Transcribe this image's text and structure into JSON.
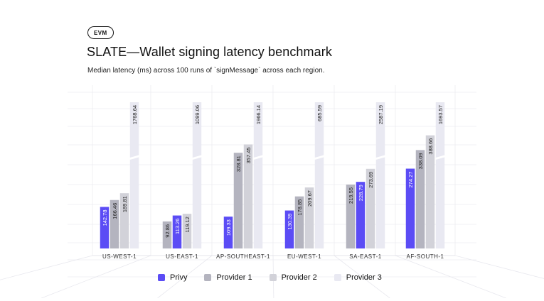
{
  "header": {
    "badge": "EVM",
    "title": "SLATE—Wallet signing latency benchmark",
    "subtitle": "Median latency (ms) across 100 runs of `signMessage` across each region."
  },
  "colors": {
    "Privy": "#5B4CF5",
    "Provider 1": "#B4B4BF",
    "Provider 2": "#D2D2D9",
    "Provider 3": "#E9E9F2"
  },
  "chart_data": {
    "type": "bar",
    "categories": [
      "US-WEST-1",
      "US-EAST-1",
      "AP-SOUTHEAST-1",
      "EU-WEST-1",
      "SA-EAST-1",
      "AF-SOUTH-1"
    ],
    "series": [
      {
        "name": "Privy",
        "values": [
          142.78,
          113.26,
          109.33,
          130.39,
          228.79,
          274.27
        ]
      },
      {
        "name": "Provider 1",
        "values": [
          166.46,
          92.86,
          328.81,
          178.85,
          219.55,
          338.09
        ]
      },
      {
        "name": "Provider 2",
        "values": [
          189.81,
          119.12,
          357.45,
          209.67,
          273.69,
          388.66
        ]
      },
      {
        "name": "Provider 3",
        "values": [
          1768.64,
          1099.06,
          1966.14,
          685.59,
          2587.19,
          1693.57
        ]
      }
    ],
    "bar_order": [
      [
        "Privy",
        "Provider 1",
        "Provider 2",
        "Provider 3"
      ],
      [
        "Provider 1",
        "Privy",
        "Provider 2",
        "Provider 3"
      ],
      [
        "Privy",
        "Provider 1",
        "Provider 2",
        "Provider 3"
      ],
      [
        "Privy",
        "Provider 1",
        "Provider 2",
        "Provider 3"
      ],
      [
        "Provider 1",
        "Privy",
        "Provider 2",
        "Provider 3"
      ],
      [
        "Privy",
        "Provider 1",
        "Provider 2",
        "Provider 3"
      ]
    ],
    "truncated_series": [
      "Provider 3"
    ],
    "legend_position": "bottom",
    "grid": true
  },
  "legend": [
    {
      "label": "Privy",
      "color": "#5B4CF5"
    },
    {
      "label": "Provider 1",
      "color": "#B4B4BF"
    },
    {
      "label": "Provider 2",
      "color": "#D2D2D9"
    },
    {
      "label": "Provider 3",
      "color": "#E9E9F2"
    }
  ]
}
